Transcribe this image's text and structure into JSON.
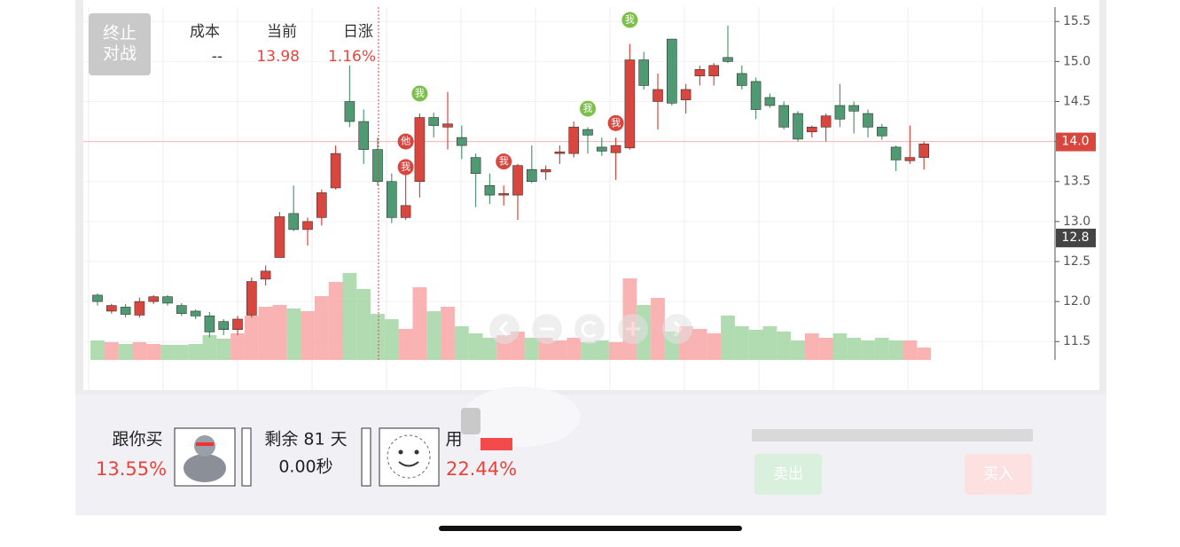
{
  "stop_button": [
    "终止",
    "对战"
  ],
  "info": [
    {
      "label": "成本",
      "value": "--"
    },
    {
      "label": "当前",
      "value": "13.98"
    },
    {
      "label": "日涨",
      "value": "1.16%"
    }
  ],
  "bottom": {
    "follow": {
      "label": "跟你买",
      "value": "13.55%"
    },
    "remaining": {
      "days": "剩余 81 天",
      "time": "0.00秒"
    },
    "user": {
      "label": "用",
      "value": "22.44%"
    },
    "buttons": [
      "卖出",
      "买入"
    ]
  },
  "chart_data": [
    {
      "type": "candlestick",
      "up_color": "#d9463e",
      "down_color": "#4f9a72",
      "ylim": [
        11.27,
        15.68
      ],
      "yticks": [
        11.5,
        {
          "value": 12,
          "label": "12.0"
        },
        12.5,
        {
          "value": 13,
          "label": "13.0"
        },
        13.5,
        {
          "value": 14,
          "label": "14.0"
        },
        14.5,
        {
          "value": 15,
          "label": "15.0"
        },
        15.5
      ],
      "open": [
        12.08,
        11.88,
        11.93,
        11.83,
        12.0,
        12.06,
        11.95,
        11.88,
        11.82,
        11.75,
        11.65,
        11.83,
        12.28,
        12.55,
        13.1,
        12.9,
        13.05,
        13.42,
        14.5,
        14.25,
        13.9,
        13.5,
        13.05,
        13.5,
        14.3,
        14.18,
        14.05,
        13.8,
        13.45,
        13.33,
        13.33,
        13.65,
        13.62,
        13.85,
        13.85,
        14.15,
        13.93,
        13.86,
        13.92,
        15.02,
        14.5,
        15.28,
        14.52,
        14.82,
        14.82,
        15.05,
        14.85,
        14.75,
        14.55,
        14.45,
        14.35,
        14.12,
        14.18,
        14.45,
        14.45,
        14.35,
        14.18,
        13.93,
        13.76,
        13.8
      ],
      "close": [
        12.0,
        11.95,
        11.84,
        12.0,
        12.06,
        11.98,
        11.85,
        11.82,
        11.62,
        11.65,
        11.78,
        12.25,
        12.38,
        13.06,
        12.9,
        13.0,
        13.36,
        13.85,
        14.25,
        13.9,
        13.5,
        13.05,
        13.2,
        14.3,
        14.2,
        14.22,
        13.95,
        13.6,
        13.33,
        13.35,
        13.7,
        13.5,
        13.65,
        13.87,
        14.18,
        14.08,
        13.88,
        13.95,
        15.02,
        14.7,
        14.65,
        14.48,
        14.65,
        14.9,
        14.95,
        15.0,
        14.7,
        14.4,
        14.45,
        14.18,
        14.03,
        14.18,
        14.32,
        14.28,
        14.38,
        14.18,
        14.07,
        13.77,
        13.8,
        13.97
      ],
      "high": [
        12.1,
        11.97,
        11.97,
        12.05,
        12.08,
        12.08,
        11.98,
        11.9,
        11.87,
        11.78,
        11.82,
        12.3,
        12.45,
        13.12,
        13.45,
        13.05,
        13.4,
        13.95,
        14.95,
        14.4,
        14.05,
        13.6,
        13.6,
        14.35,
        14.36,
        14.62,
        14.2,
        13.85,
        13.6,
        13.45,
        13.72,
        13.95,
        13.7,
        13.95,
        14.25,
        14.18,
        14.05,
        14.05,
        15.22,
        15.12,
        14.85,
        15.28,
        14.72,
        14.95,
        14.98,
        15.45,
        14.95,
        14.8,
        14.6,
        14.5,
        14.38,
        14.2,
        14.35,
        14.72,
        14.5,
        14.4,
        14.22,
        13.95,
        14.2,
        14.0
      ],
      "low": [
        11.95,
        11.85,
        11.8,
        11.8,
        11.97,
        11.95,
        11.82,
        11.78,
        11.55,
        11.58,
        11.58,
        11.8,
        12.2,
        12.55,
        12.88,
        12.7,
        12.95,
        13.4,
        14.18,
        13.72,
        13.45,
        12.98,
        13.02,
        13.3,
        14.05,
        13.9,
        13.78,
        13.18,
        13.22,
        13.2,
        13.02,
        13.48,
        13.52,
        13.72,
        13.8,
        13.85,
        13.82,
        13.52,
        13.9,
        14.65,
        14.15,
        14.45,
        14.35,
        14.7,
        14.7,
        14.98,
        14.65,
        14.28,
        14.42,
        14.15,
        14.0,
        14.05,
        14.0,
        14.18,
        14.1,
        14.05,
        14.02,
        13.63,
        13.72,
        13.65
      ],
      "price_tags": [
        {
          "value": 14,
          "label": "14.0",
          "color": "#d9463e"
        },
        {
          "value": 12.8,
          "label": "12.8",
          "color": "#444444"
        }
      ],
      "markers": [
        {
          "label": "我",
          "candle": 23,
          "price": 14.6,
          "color": "#7cc04b"
        },
        {
          "label": "他",
          "candle": 22,
          "price": 14.0,
          "color": "#d9463e"
        },
        {
          "label": "我",
          "candle": 22,
          "price": 13.68,
          "color": "#d9463e"
        },
        {
          "label": "我",
          "candle": 29,
          "price": 13.75,
          "color": "#d9463e"
        },
        {
          "label": "我",
          "candle": 35,
          "price": 14.41,
          "color": "#7cc04b"
        },
        {
          "label": "我",
          "candle": 37,
          "price": 14.23,
          "color": "#d9463e"
        },
        {
          "label": "我",
          "candle": 38,
          "price": 15.52,
          "color": "#7cc04b"
        }
      ]
    },
    {
      "type": "bar",
      "up_color": "#f7a0a0",
      "down_color": "#9ed39e",
      "ylim": [
        0,
        100
      ],
      "values": [
        22,
        20,
        18,
        20,
        18,
        17,
        17,
        18,
        28,
        24,
        30,
        50,
        60,
        62,
        58,
        55,
        72,
        88,
        98,
        80,
        52,
        46,
        35,
        82,
        55,
        60,
        38,
        30,
        25,
        28,
        32,
        25,
        25,
        22,
        25,
        20,
        22,
        20,
        92,
        62,
        70,
        32,
        38,
        35,
        30,
        50,
        38,
        34,
        38,
        32,
        22,
        30,
        25,
        30,
        25,
        22,
        25,
        22,
        22,
        14
      ]
    }
  ]
}
